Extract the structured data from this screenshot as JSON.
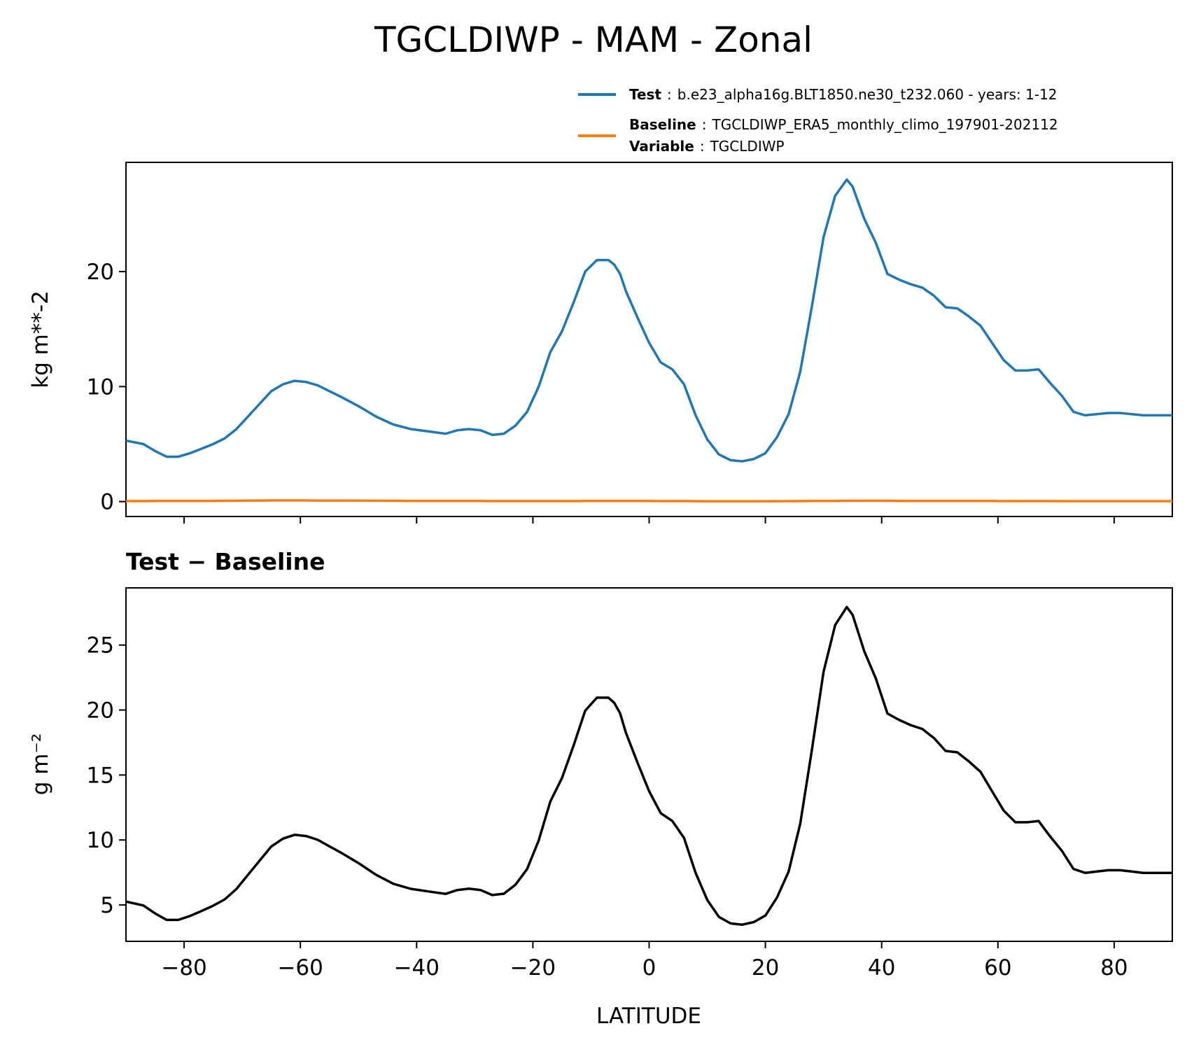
{
  "title": "TGCLDIWP - MAM - Zonal",
  "legend": {
    "test": {
      "key": "Test",
      "sep": ":",
      "value": "b.e23_alpha16g.BLT1850.ne30_t232.060 - years: 1-12",
      "color": "#1f77b4"
    },
    "baseline": {
      "key": "Baseline",
      "sep": ":",
      "value": "TGCLDIWP_ERA5_monthly_climo_197901-202112",
      "color": "#ff7f0e"
    },
    "variable": {
      "key": "Variable",
      "sep": ":",
      "value": "TGCLDIWP"
    }
  },
  "chart_data": [
    {
      "type": "line",
      "ylabel": "kg m**-2",
      "xlim": [
        -90,
        90
      ],
      "ylim": [
        -1.3,
        29.5
      ],
      "xticks": [
        -80,
        -60,
        -40,
        -20,
        0,
        20,
        40,
        60,
        80
      ],
      "yticks": [
        0,
        10,
        20
      ],
      "ytick_labels": [
        "0",
        "10",
        "20"
      ],
      "x": [
        -90,
        -87,
        -85,
        -83,
        -81,
        -79,
        -77,
        -75,
        -73,
        -71,
        -69,
        -67,
        -65,
        -63,
        -61,
        -59,
        -57,
        -55,
        -53,
        -50,
        -47,
        -44,
        -41,
        -38,
        -35,
        -33,
        -31,
        -29,
        -27,
        -25,
        -23,
        -21,
        -19,
        -17,
        -15,
        -13,
        -11,
        -9,
        -7,
        -6,
        -5,
        -4,
        -2,
        0,
        2,
        4,
        6,
        8,
        10,
        12,
        14,
        16,
        18,
        20,
        22,
        24,
        26,
        28,
        30,
        32,
        34,
        35,
        36,
        37,
        39,
        41,
        43,
        45,
        47,
        49,
        51,
        53,
        55,
        57,
        59,
        61,
        63,
        65,
        67,
        69,
        71,
        73,
        75,
        77,
        79,
        81,
        83,
        85,
        87,
        90
      ],
      "series": [
        {
          "name": "Test",
          "color": "#1f77b4",
          "values": [
            5.3,
            5.0,
            4.4,
            3.9,
            3.9,
            4.2,
            4.6,
            5.0,
            5.5,
            6.3,
            7.4,
            8.5,
            9.6,
            10.2,
            10.5,
            10.4,
            10.1,
            9.6,
            9.1,
            8.3,
            7.4,
            6.7,
            6.3,
            6.1,
            5.9,
            6.2,
            6.3,
            6.2,
            5.8,
            5.9,
            6.6,
            7.8,
            10.0,
            13.0,
            14.8,
            17.3,
            20.0,
            21.0,
            21.0,
            20.6,
            19.8,
            18.3,
            16.0,
            13.8,
            12.1,
            11.5,
            10.2,
            7.5,
            5.4,
            4.1,
            3.6,
            3.5,
            3.7,
            4.2,
            5.6,
            7.6,
            11.3,
            17.0,
            23.0,
            26.6,
            28.0,
            27.4,
            26.0,
            24.6,
            22.5,
            19.8,
            19.3,
            18.9,
            18.6,
            17.9,
            16.9,
            16.8,
            16.1,
            15.3,
            13.8,
            12.3,
            11.4,
            11.4,
            11.5,
            10.3,
            9.2,
            7.8,
            7.5,
            7.6,
            7.7,
            7.7,
            7.6,
            7.5,
            7.5,
            7.5
          ]
        },
        {
          "name": "Baseline",
          "color": "#ff7f0e",
          "values": [
            0.04,
            0.04,
            0.05,
            0.05,
            0.05,
            0.05,
            0.06,
            0.06,
            0.07,
            0.07,
            0.08,
            0.09,
            0.1,
            0.1,
            0.1,
            0.1,
            0.09,
            0.09,
            0.08,
            0.08,
            0.07,
            0.07,
            0.06,
            0.06,
            0.05,
            0.05,
            0.05,
            0.05,
            0.04,
            0.04,
            0.04,
            0.04,
            0.04,
            0.04,
            0.04,
            0.04,
            0.05,
            0.05,
            0.05,
            0.05,
            0.05,
            0.05,
            0.05,
            0.05,
            0.04,
            0.04,
            0.04,
            0.03,
            0.02,
            0.02,
            0.02,
            0.02,
            0.02,
            0.02,
            0.03,
            0.03,
            0.04,
            0.05,
            0.06,
            0.06,
            0.07,
            0.07,
            0.07,
            0.07,
            0.07,
            0.07,
            0.06,
            0.06,
            0.06,
            0.06,
            0.05,
            0.05,
            0.05,
            0.05,
            0.05,
            0.04,
            0.04,
            0.04,
            0.04,
            0.04,
            0.03,
            0.03,
            0.03,
            0.03,
            0.03,
            0.03,
            0.03,
            0.03,
            0.03,
            0.03
          ]
        }
      ]
    },
    {
      "type": "line",
      "title": "Test − Baseline",
      "xlabel": "LATITUDE",
      "ylabel": "g m⁻²",
      "xlim": [
        -90,
        90
      ],
      "ylim": [
        2.2,
        29.4
      ],
      "xticks": [
        -80,
        -60,
        -40,
        -20,
        0,
        20,
        40,
        60,
        80
      ],
      "xtick_labels": [
        "−80",
        "−60",
        "−40",
        "−20",
        "0",
        "20",
        "40",
        "60",
        "80"
      ],
      "yticks": [
        5,
        10,
        15,
        20,
        25
      ],
      "ytick_labels": [
        "5",
        "10",
        "15",
        "20",
        "25"
      ],
      "series": [
        {
          "color": "#000000",
          "note": "difference",
          "values": [
            5.26,
            4.96,
            4.35,
            3.85,
            3.85,
            4.15,
            4.54,
            4.94,
            5.43,
            6.23,
            7.32,
            8.41,
            9.5,
            10.1,
            10.4,
            10.3,
            10.01,
            9.51,
            9.02,
            8.22,
            7.33,
            6.63,
            6.24,
            6.04,
            5.85,
            6.15,
            6.25,
            6.15,
            5.76,
            5.86,
            6.56,
            7.76,
            9.96,
            12.96,
            14.76,
            17.26,
            19.95,
            20.95,
            20.95,
            20.55,
            19.75,
            18.25,
            15.95,
            13.75,
            12.06,
            11.46,
            10.16,
            7.47,
            5.38,
            4.08,
            3.58,
            3.48,
            3.68,
            4.18,
            5.57,
            7.57,
            11.26,
            16.95,
            22.94,
            26.54,
            27.93,
            27.33,
            25.93,
            24.53,
            22.43,
            19.73,
            19.24,
            18.84,
            18.54,
            17.84,
            16.85,
            16.75,
            16.05,
            15.25,
            13.75,
            12.26,
            11.36,
            11.36,
            11.46,
            10.26,
            9.17,
            7.77,
            7.47,
            7.57,
            7.67,
            7.67,
            7.57,
            7.47,
            7.47,
            7.47
          ]
        }
      ]
    }
  ]
}
